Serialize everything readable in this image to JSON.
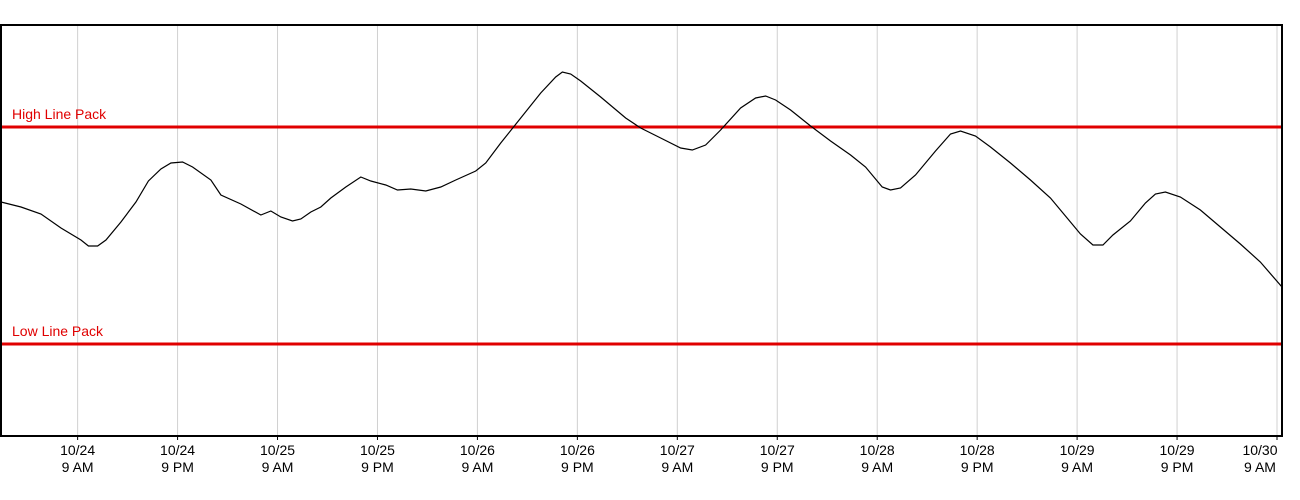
{
  "chart_data": {
    "type": "line",
    "x": [
      -9.2,
      -6.8,
      -4.4,
      -2.0,
      0.4,
      1.3,
      2.4,
      3.4,
      5.2,
      7.0,
      8.5,
      10.0,
      11.2,
      12.6,
      13.8,
      16.0,
      17.2,
      19.6,
      22.0,
      23.2,
      24.4,
      25.8,
      26.8,
      28.0,
      29.2,
      30.4,
      32.2,
      34.0,
      35.2,
      37.0,
      38.4,
      40.0,
      41.8,
      43.6,
      45.4,
      47.8,
      49.0,
      50.8,
      53.2,
      55.6,
      57.4,
      58.2,
      59.2,
      60.4,
      62.8,
      65.8,
      67.6,
      70.0,
      72.4,
      73.8,
      75.4,
      77.2,
      79.6,
      81.4,
      82.6,
      83.8,
      85.6,
      88.0,
      90.4,
      92.8,
      94.6,
      96.6,
      97.6,
      98.8,
      100.6,
      103.0,
      104.8,
      106.0,
      107.8,
      109.6,
      112.0,
      114.4,
      116.8,
      118.6,
      120.4,
      121.9,
      123.1,
      124.3,
      126.4,
      128.2,
      129.4,
      130.6,
      132.4,
      134.8,
      137.2,
      139.6,
      142.0,
      144.6
    ],
    "values": [
      234,
      229,
      222,
      208,
      196,
      190,
      190,
      196,
      214,
      234,
      255,
      267,
      273,
      274,
      269,
      256,
      241,
      232,
      221,
      225,
      219,
      215,
      217,
      224,
      229,
      238,
      249,
      259,
      255,
      251,
      246,
      247,
      245,
      249,
      256,
      265,
      273,
      293,
      318,
      343,
      359,
      364,
      362,
      355,
      339,
      318,
      308,
      298,
      288,
      286,
      291,
      306,
      328,
      338,
      340,
      336,
      326,
      310,
      295,
      281,
      269,
      249,
      246,
      248,
      261,
      285,
      302,
      305,
      300,
      289,
      273,
      256,
      238,
      220,
      202,
      191,
      191,
      201,
      215,
      233,
      242,
      244,
      239,
      226,
      209,
      192,
      174,
      149
    ],
    "color": "#000000",
    "xlim": [
      -9.2,
      144.6
    ],
    "ylim": [
      0,
      411
    ],
    "xticks": [
      {
        "value": 0,
        "label": "10/24\n9 AM"
      },
      {
        "value": 12,
        "label": "10/24\n9 PM"
      },
      {
        "value": 24,
        "label": "10/25\n9 AM"
      },
      {
        "value": 36,
        "label": "10/25\n9 PM"
      },
      {
        "value": 48,
        "label": "10/26\n9 AM"
      },
      {
        "value": 60,
        "label": "10/26\n9 PM"
      },
      {
        "value": 72,
        "label": "10/27\n9 AM"
      },
      {
        "value": 84,
        "label": "10/27\n9 PM"
      },
      {
        "value": 96,
        "label": "10/28\n9 AM"
      },
      {
        "value": 108,
        "label": "10/28\n9 PM"
      },
      {
        "value": 120,
        "label": "10/29\n9 AM"
      },
      {
        "value": 132,
        "label": "10/29\n9 PM"
      },
      {
        "value": 144,
        "label": "10/30\n9 AM"
      }
    ],
    "grid": true,
    "reference_lines": [
      {
        "label": "High Line Pack",
        "value": 309,
        "color": "#e00000"
      },
      {
        "label": "Low Line Pack",
        "value": 92,
        "color": "#e00000"
      }
    ]
  }
}
